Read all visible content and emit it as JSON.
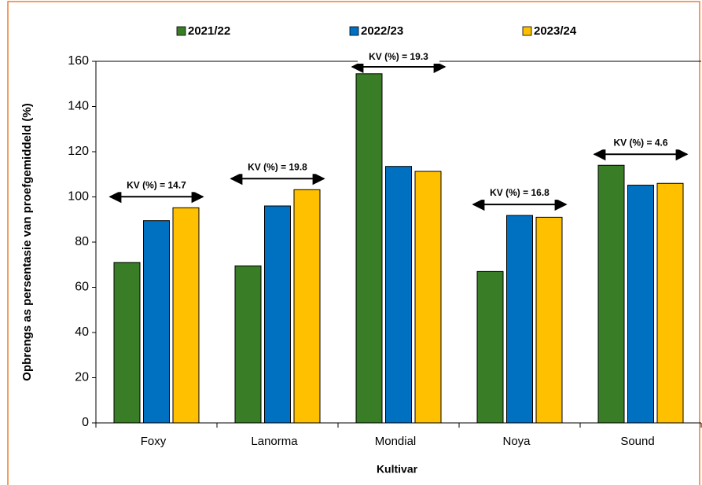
{
  "chart_data": {
    "type": "bar",
    "y_label": "Opbrengs as persentasie van proefgemiddeld (%)",
    "x_label": "Kultivar",
    "categories": [
      "Foxy",
      "Lanorma",
      "Mondial",
      "Noya",
      "Sound"
    ],
    "series": [
      {
        "name": "2021/22",
        "color": "#3a7d27",
        "values": [
          71,
          69.5,
          154.5,
          67,
          114
        ]
      },
      {
        "name": "2022/23",
        "color": "#0070c0",
        "values": [
          89.5,
          96,
          113.5,
          91.8,
          105.2
        ]
      },
      {
        "name": "2023/24",
        "color": "#ffc000",
        "values": [
          95.2,
          103.2,
          111.3,
          91,
          106
        ]
      }
    ],
    "annotations": [
      "KV (%) = 14.7",
      "KV (%) = 19.8",
      "KV (%) = 19.3",
      "KV (%) = 16.8",
      "KV (%) = 4.6"
    ],
    "ylim": [
      0,
      160
    ],
    "yticks": [
      0,
      20,
      40,
      60,
      80,
      100,
      120,
      140,
      160
    ],
    "legend": "top"
  }
}
